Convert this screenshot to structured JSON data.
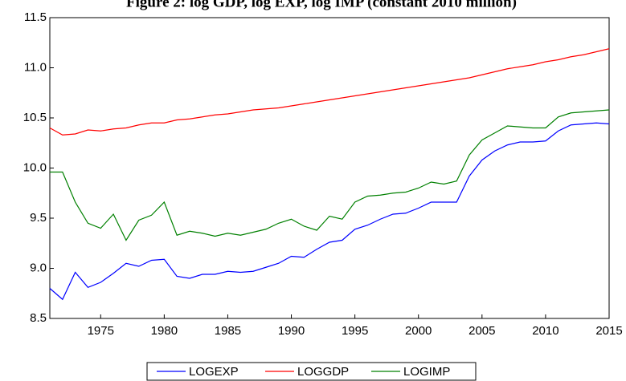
{
  "chart_data": {
    "type": "line",
    "title": "Figure 2: log GDP, log EXP, log IMP (constant 2010 million)",
    "x": [
      1971,
      1972,
      1973,
      1974,
      1975,
      1976,
      1977,
      1978,
      1979,
      1980,
      1981,
      1982,
      1983,
      1984,
      1985,
      1986,
      1987,
      1988,
      1989,
      1990,
      1991,
      1992,
      1993,
      1994,
      1995,
      1996,
      1997,
      1998,
      1999,
      2000,
      2001,
      2002,
      2003,
      2004,
      2005,
      2006,
      2007,
      2008,
      2009,
      2010,
      2011,
      2012,
      2013,
      2014,
      2015
    ],
    "series": [
      {
        "name": "LOGEXP",
        "color": "#0000ff",
        "values": [
          8.8,
          8.69,
          8.96,
          8.81,
          8.86,
          8.95,
          9.05,
          9.02,
          9.08,
          9.09,
          8.92,
          8.9,
          8.94,
          8.94,
          8.97,
          8.96,
          8.97,
          9.01,
          9.05,
          9.12,
          9.11,
          9.19,
          9.26,
          9.28,
          9.39,
          9.43,
          9.49,
          9.54,
          9.55,
          9.6,
          9.66,
          9.66,
          9.66,
          9.92,
          10.08,
          10.17,
          10.23,
          10.26,
          10.26,
          10.27,
          10.37,
          10.43,
          10.44,
          10.45,
          10.44
        ]
      },
      {
        "name": "LOGGDP",
        "color": "#ff0000",
        "values": [
          10.4,
          10.33,
          10.34,
          10.38,
          10.37,
          10.39,
          10.4,
          10.43,
          10.45,
          10.45,
          10.48,
          10.49,
          10.51,
          10.53,
          10.54,
          10.56,
          10.58,
          10.59,
          10.6,
          10.62,
          10.64,
          10.66,
          10.68,
          10.7,
          10.72,
          10.74,
          10.76,
          10.78,
          10.8,
          10.82,
          10.84,
          10.86,
          10.88,
          10.9,
          10.93,
          10.96,
          10.99,
          11.01,
          11.03,
          11.06,
          11.08,
          11.11,
          11.13,
          11.16,
          11.19
        ]
      },
      {
        "name": "LOGIMP",
        "color": "#008000",
        "values": [
          9.96,
          9.96,
          9.66,
          9.45,
          9.4,
          9.54,
          9.28,
          9.48,
          9.53,
          9.66,
          9.33,
          9.37,
          9.35,
          9.32,
          9.35,
          9.33,
          9.36,
          9.39,
          9.45,
          9.49,
          9.42,
          9.38,
          9.52,
          9.49,
          9.66,
          9.72,
          9.73,
          9.75,
          9.76,
          9.8,
          9.86,
          9.84,
          9.87,
          10.13,
          10.28,
          10.35,
          10.42,
          10.41,
          10.4,
          10.4,
          10.51,
          10.55,
          10.56,
          10.57,
          10.58
        ]
      }
    ],
    "xlim": [
      1971,
      2015
    ],
    "xticks": [
      1975,
      1980,
      1985,
      1990,
      1995,
      2000,
      2005,
      2010,
      2015
    ],
    "ylim": [
      8.5,
      11.5
    ],
    "yticks": [
      8.5,
      {
        "value": 9,
        "label": "9.0"
      },
      9.5,
      {
        "value": 10,
        "label": "10.0"
      },
      10.5,
      {
        "value": 11,
        "label": "11.0"
      },
      11.5
    ],
    "legend": "bottom"
  }
}
